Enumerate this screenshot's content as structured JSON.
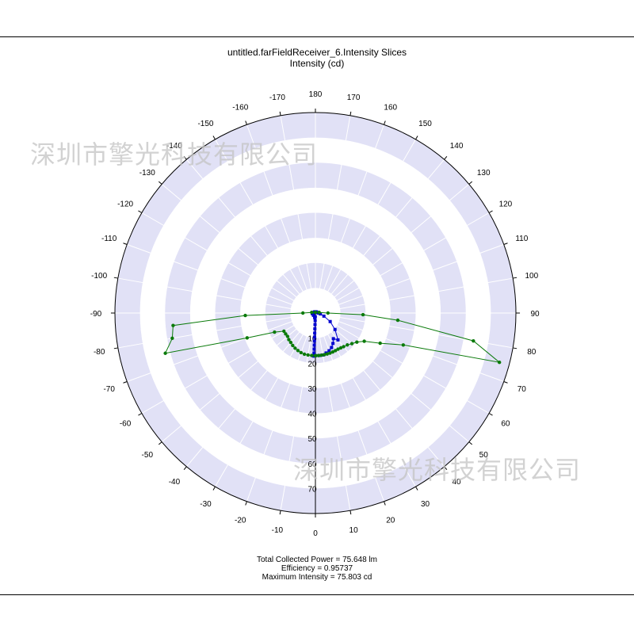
{
  "header": {
    "title_line1": "untitled.farFieldReceiver_6.Intensity Slices",
    "title_line2": "Intensity (cd)"
  },
  "footer": {
    "line1": "Total Collected Power = 75.648  lm",
    "line2": "Efficiency = 0.95737",
    "line3": "Maximum Intensity = 75.803  cd"
  },
  "watermarks": [
    "深圳市擎光科技有限公司",
    "深圳市擎光科技有限公司"
  ],
  "colors": {
    "band": "#e1e1f6",
    "series_blue": "#0000d0",
    "series_green": "#0a7a0a",
    "axis": "#000000"
  },
  "chart_data": {
    "type": "polar-line",
    "title": "untitled.farFieldReceiver_6.Intensity Slices",
    "subtitle": "Intensity (cd)",
    "angle_ticks": [
      -170,
      -160,
      -150,
      -140,
      -130,
      -120,
      -110,
      -100,
      -90,
      -80,
      -70,
      -60,
      -50,
      -40,
      -30,
      -20,
      -10,
      0,
      10,
      20,
      30,
      40,
      50,
      60,
      70,
      80,
      90,
      100,
      110,
      120,
      130,
      140,
      150,
      160,
      170,
      180
    ],
    "angle_range": [
      -180,
      180
    ],
    "radial_ticks": [
      10,
      20,
      30,
      40,
      50,
      60,
      70
    ],
    "radial_range": [
      0,
      80
    ],
    "grid": true,
    "series": [
      {
        "color": "#0000d0",
        "marker": "square",
        "points": [
          [
            0,
            17
          ],
          [
            5,
            17
          ],
          [
            10,
            17
          ],
          [
            15,
            16.5
          ],
          [
            20,
            16
          ],
          [
            25,
            15.2
          ],
          [
            30,
            14
          ],
          [
            35,
            12.5
          ],
          [
            40,
            14
          ],
          [
            50,
            10.2
          ],
          [
            60,
            6.8
          ],
          [
            70,
            3.6
          ],
          [
            80,
            2
          ],
          [
            90,
            1.2
          ],
          [
            100,
            0.9
          ],
          [
            140,
            0.6
          ],
          [
            180,
            0.5
          ],
          [
            -140,
            0.6
          ],
          [
            -100,
            0.9
          ],
          [
            -90,
            1.2
          ],
          [
            -80,
            1.3
          ],
          [
            -70,
            1
          ],
          [
            -40,
            1.2
          ],
          [
            -10,
            1.8
          ],
          [
            -2,
            1.5
          ],
          [
            -2,
            3
          ],
          [
            -2,
            4.6
          ],
          [
            -2,
            6.3
          ],
          [
            -2,
            8
          ],
          [
            -2,
            9.6
          ],
          [
            -2,
            11.2
          ],
          [
            -2,
            12.8
          ],
          [
            -2,
            14.4
          ],
          [
            -2,
            16
          ],
          [
            -2,
            17.2
          ]
        ]
      },
      {
        "color": "#0a7a0a",
        "marker": "circle",
        "points": [
          [
            0,
            17
          ],
          [
            4,
            17
          ],
          [
            8,
            17
          ],
          [
            12,
            17
          ],
          [
            16,
            17
          ],
          [
            20,
            17
          ],
          [
            24,
            17
          ],
          [
            28,
            17
          ],
          [
            32,
            17
          ],
          [
            36,
            17.2
          ],
          [
            40,
            17.5
          ],
          [
            45,
            18
          ],
          [
            50,
            19
          ],
          [
            55,
            20.2
          ],
          [
            60,
            22.5
          ],
          [
            65,
            28.5
          ],
          [
            70,
            37.3
          ],
          [
            75,
            76
          ],
          [
            80,
            64
          ],
          [
            85,
            33
          ],
          [
            88,
            19
          ],
          [
            90,
            5
          ],
          [
            100,
            1.5
          ],
          [
            180,
            0.3
          ],
          [
            -100,
            1.5
          ],
          [
            -90,
            5
          ],
          [
            -88,
            28
          ],
          [
            -85,
            57
          ],
          [
            -80,
            58
          ],
          [
            -75,
            62
          ],
          [
            -70,
            29
          ],
          [
            -65,
            18
          ],
          [
            -60,
            14.5
          ],
          [
            -55,
            14.5
          ],
          [
            -50,
            14.5
          ],
          [
            -45,
            15
          ],
          [
            -40,
            15.3
          ],
          [
            -35,
            15.8
          ],
          [
            -30,
            16.2
          ],
          [
            -25,
            16.5
          ],
          [
            -20,
            16.8
          ],
          [
            -15,
            17
          ],
          [
            -10,
            17
          ],
          [
            -5,
            17
          ],
          [
            0,
            17
          ]
        ]
      }
    ]
  }
}
